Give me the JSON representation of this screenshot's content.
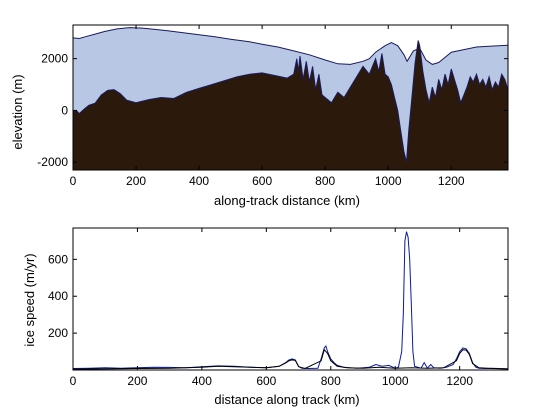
{
  "chart_data": [
    {
      "type": "area",
      "xlabel": "along-track distance (km)",
      "ylabel": "elevation (m)",
      "xlim": [
        0,
        1380
      ],
      "ylim": [
        -2300,
        3300
      ],
      "xticks": [
        0,
        200,
        400,
        600,
        800,
        1000,
        1200
      ],
      "yticks": [
        -2000,
        0,
        2000
      ],
      "series": [
        {
          "colour": "#b8c8e4",
          "x": [
            0,
            20,
            40,
            70,
            100,
            140,
            180,
            220,
            260,
            300,
            350,
            400,
            450,
            500,
            560,
            600,
            650,
            700,
            750,
            800,
            840,
            880,
            920,
            940,
            960,
            990,
            1010,
            1030,
            1050,
            1060,
            1080,
            1100,
            1120,
            1140,
            1160,
            1180,
            1200,
            1240,
            1280,
            1320,
            1350,
            1380
          ],
          "values": [
            2800,
            2780,
            2850,
            2950,
            3050,
            3150,
            3200,
            3180,
            3130,
            3080,
            3000,
            2920,
            2850,
            2750,
            2650,
            2560,
            2450,
            2300,
            2150,
            1950,
            1800,
            1780,
            1900,
            2000,
            2250,
            2500,
            2620,
            2500,
            2150,
            1900,
            2300,
            2400,
            1950,
            1780,
            1850,
            2050,
            2250,
            2350,
            2450,
            2480,
            2500,
            2520
          ]
        },
        {
          "colour": "#2b1a0c",
          "x": [
            0,
            10,
            20,
            35,
            50,
            70,
            90,
            110,
            130,
            150,
            170,
            200,
            240,
            280,
            320,
            360,
            400,
            440,
            480,
            520,
            560,
            600,
            640,
            680,
            700,
            710,
            715,
            720,
            730,
            740,
            750,
            760,
            770,
            780,
            790,
            800,
            820,
            840,
            860,
            880,
            900,
            920,
            940,
            960,
            970,
            980,
            990,
            1000,
            1010,
            1020,
            1030,
            1040,
            1050,
            1058,
            1065,
            1075,
            1085,
            1095,
            1100,
            1110,
            1120,
            1130,
            1140,
            1150,
            1160,
            1170,
            1180,
            1190,
            1200,
            1210,
            1220,
            1230,
            1240,
            1250,
            1260,
            1270,
            1280,
            1290,
            1300,
            1310,
            1320,
            1330,
            1340,
            1350,
            1360,
            1370,
            1380
          ],
          "values": [
            -50,
            0,
            -120,
            50,
            200,
            280,
            600,
            780,
            800,
            650,
            400,
            300,
            420,
            500,
            460,
            700,
            850,
            1000,
            1150,
            1300,
            1400,
            1450,
            1350,
            1250,
            1400,
            2000,
            1500,
            2100,
            1200,
            1900,
            1100,
            1700,
            800,
            1400,
            600,
            500,
            300,
            700,
            500,
            900,
            1300,
            1700,
            1400,
            2000,
            1500,
            2200,
            1400,
            1300,
            1000,
            500,
            0,
            -800,
            -1600,
            -2000,
            -800,
            500,
            1800,
            2700,
            2500,
            1500,
            800,
            300,
            900,
            500,
            1200,
            800,
            1400,
            1000,
            1600,
            1200,
            800,
            300,
            600,
            900,
            1300,
            1100,
            1400,
            1000,
            1200,
            900,
            1300,
            800,
            1100,
            900,
            1400,
            1200,
            800
          ]
        }
      ]
    },
    {
      "type": "line",
      "xlabel": "distance along track (km)",
      "ylabel": "ice speed (m/yr)",
      "xlim": [
        0,
        1350
      ],
      "ylim": [
        0,
        770
      ],
      "xticks": [
        0,
        200,
        400,
        600,
        800,
        1000,
        1200
      ],
      "yticks": [
        200,
        400,
        600
      ],
      "series": [
        {
          "colour": "#0a1aa0",
          "x": [
            0,
            50,
            100,
            150,
            200,
            250,
            300,
            350,
            400,
            450,
            500,
            550,
            600,
            640,
            660,
            670,
            680,
            690,
            700,
            710,
            730,
            760,
            770,
            780,
            785,
            790,
            800,
            810,
            820,
            840,
            860,
            880,
            900,
            920,
            940,
            960,
            980,
            1000,
            1010,
            1020,
            1025,
            1030,
            1035,
            1040,
            1045,
            1050,
            1055,
            1060,
            1070,
            1080,
            1090,
            1100,
            1110,
            1120,
            1140,
            1160,
            1180,
            1190,
            1200,
            1210,
            1220,
            1230,
            1240,
            1250,
            1260,
            1280,
            1300,
            1320,
            1350
          ],
          "values": [
            8,
            10,
            12,
            10,
            12,
            15,
            14,
            12,
            18,
            22,
            20,
            15,
            12,
            20,
            40,
            55,
            60,
            55,
            20,
            10,
            8,
            10,
            60,
            120,
            130,
            100,
            60,
            40,
            25,
            15,
            12,
            10,
            12,
            15,
            30,
            20,
            25,
            10,
            15,
            100,
            300,
            700,
            750,
            720,
            600,
            360,
            100,
            20,
            15,
            10,
            40,
            10,
            30,
            12,
            10,
            15,
            30,
            60,
            100,
            120,
            115,
            90,
            40,
            15,
            10,
            8,
            10,
            8,
            6
          ]
        },
        {
          "colour": "#000000",
          "x": [
            0,
            100,
            200,
            300,
            400,
            450,
            500,
            600,
            640,
            660,
            670,
            680,
            690,
            700,
            720,
            770,
            780,
            790,
            800,
            820,
            850,
            900,
            950,
            1000,
            1050,
            1100,
            1150,
            1190,
            1200,
            1210,
            1220,
            1230,
            1240,
            1260,
            1300,
            1350
          ],
          "values": [
            5,
            6,
            8,
            10,
            15,
            20,
            18,
            12,
            20,
            38,
            50,
            55,
            52,
            18,
            8,
            50,
            110,
            90,
            50,
            20,
            12,
            10,
            15,
            10,
            12,
            10,
            12,
            50,
            90,
            110,
            108,
            85,
            35,
            12,
            8,
            6
          ]
        }
      ]
    }
  ]
}
